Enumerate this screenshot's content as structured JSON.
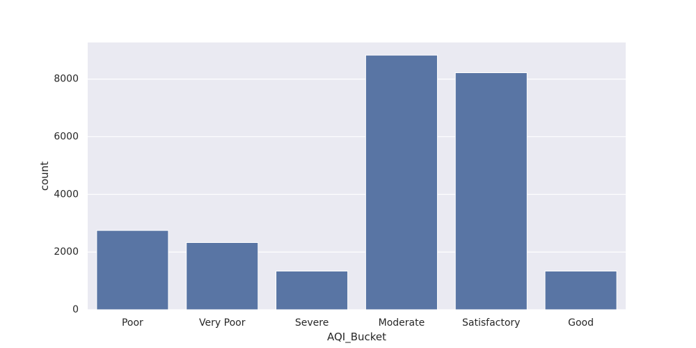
{
  "chart_data": {
    "type": "bar",
    "title": "",
    "xlabel": "AQI_Bucket",
    "ylabel": "count",
    "categories": [
      "Poor",
      "Very Poor",
      "Severe",
      "Moderate",
      "Satisfactory",
      "Good"
    ],
    "values": [
      2750,
      2330,
      1340,
      8830,
      8220,
      1340
    ],
    "ylim": [
      0,
      9270
    ],
    "yticks": [
      0,
      2000,
      4000,
      6000,
      8000
    ],
    "ytick_labels": [
      "0",
      "2000",
      "4000",
      "6000",
      "8000"
    ],
    "grid": true,
    "legend": "none",
    "colors": {
      "bar": "#5975a4",
      "plot_background": "#eaeaf2",
      "grid": "#ffffff",
      "text": "#262626"
    }
  }
}
